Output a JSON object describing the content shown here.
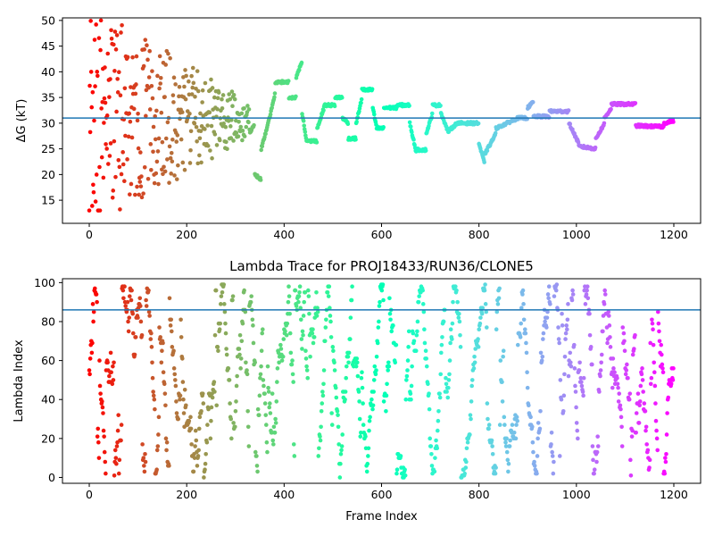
{
  "figure": {
    "background": "#ffffff",
    "colormap": "rainbow"
  },
  "chart_data": [
    {
      "type": "scatter",
      "title": "",
      "xlabel": "",
      "ylabel": "ΔG (kT)",
      "xlim": [
        -55,
        1255
      ],
      "ylim": [
        10.5,
        50.5
      ],
      "xticks": [
        0,
        200,
        400,
        600,
        800,
        1000,
        1200
      ],
      "yticks": [
        15,
        20,
        25,
        30,
        35,
        40,
        45,
        50
      ],
      "grid": false,
      "reference_line": {
        "orientation": "horizontal",
        "y": 31,
        "color": "#1f77b4"
      },
      "points_colored_by": "frame index (rainbow colormap, red → violet)",
      "description_of_series": "Free-energy estimate per frame; early frames widely scattered (13–50 kT), later frames converge to stepwise plateaus between ~22 and ~42 kT.",
      "plateau_segments": [
        [
          330,
          339,
          28,
          30
        ],
        [
          340,
          353,
          20,
          19
        ],
        [
          353,
          365,
          25,
          29
        ],
        [
          365,
          382,
          29,
          36
        ],
        [
          382,
          410,
          38,
          38
        ],
        [
          410,
          425,
          35,
          35
        ],
        [
          425,
          437,
          39,
          42
        ],
        [
          437,
          447,
          32,
          26
        ],
        [
          447,
          468,
          26.5,
          26.5
        ],
        [
          468,
          482,
          29,
          33
        ],
        [
          482,
          505,
          33.5,
          33.5
        ],
        [
          505,
          520,
          35,
          35
        ],
        [
          520,
          532,
          31,
          30
        ],
        [
          532,
          548,
          27,
          27
        ],
        [
          548,
          560,
          30,
          35
        ],
        [
          560,
          582,
          36.5,
          36.5
        ],
        [
          582,
          590,
          33,
          29
        ],
        [
          590,
          605,
          29,
          29
        ],
        [
          605,
          632,
          33,
          33
        ],
        [
          632,
          658,
          33.5,
          33.5
        ],
        [
          658,
          672,
          30,
          24
        ],
        [
          672,
          692,
          24.8,
          24.8
        ],
        [
          692,
          705,
          28,
          32
        ],
        [
          705,
          722,
          33.5,
          33.5
        ],
        [
          722,
          738,
          32,
          28
        ],
        [
          738,
          755,
          28.5,
          30
        ],
        [
          755,
          800,
          30,
          30
        ],
        [
          800,
          812,
          26,
          22
        ],
        [
          812,
          835,
          24,
          28
        ],
        [
          835,
          880,
          29,
          31
        ],
        [
          880,
          900,
          31,
          31
        ],
        [
          900,
          912,
          33,
          34.2
        ],
        [
          912,
          945,
          31.3,
          31.3
        ],
        [
          945,
          985,
          32.3,
          32.3
        ],
        [
          985,
          1005,
          30,
          26
        ],
        [
          1005,
          1040,
          25.5,
          25
        ],
        [
          1040,
          1058,
          27,
          30
        ],
        [
          1058,
          1072,
          31,
          33
        ],
        [
          1072,
          1122,
          33.7,
          33.7
        ],
        [
          1122,
          1180,
          29.5,
          29.3
        ],
        [
          1180,
          1200,
          30,
          30.5
        ]
      ],
      "early_points_x_range": [
        0,
        330
      ],
      "early_points_y_range": [
        13,
        50
      ]
    },
    {
      "type": "scatter",
      "title": "Lambda Trace for PROJ18433/RUN36/CLONE5",
      "xlabel": "Frame Index",
      "ylabel": "Lambda Index",
      "xlim": [
        -55,
        1255
      ],
      "ylim": [
        -3,
        102
      ],
      "xticks": [
        0,
        200,
        400,
        600,
        800,
        1000,
        1200
      ],
      "yticks": [
        0,
        20,
        40,
        60,
        80,
        100
      ],
      "grid": false,
      "reference_line": {
        "orientation": "horizontal",
        "y": 86,
        "color": "#1f77b4"
      },
      "points_colored_by": "frame index (rainbow colormap, red → violet)",
      "x_range": [
        0,
        1200
      ],
      "y_range": [
        0,
        99
      ],
      "description_of_series": "Lambda index visited per frame; points sweep repeatedly between 0 and ~99 throughout the trajectory."
    }
  ]
}
